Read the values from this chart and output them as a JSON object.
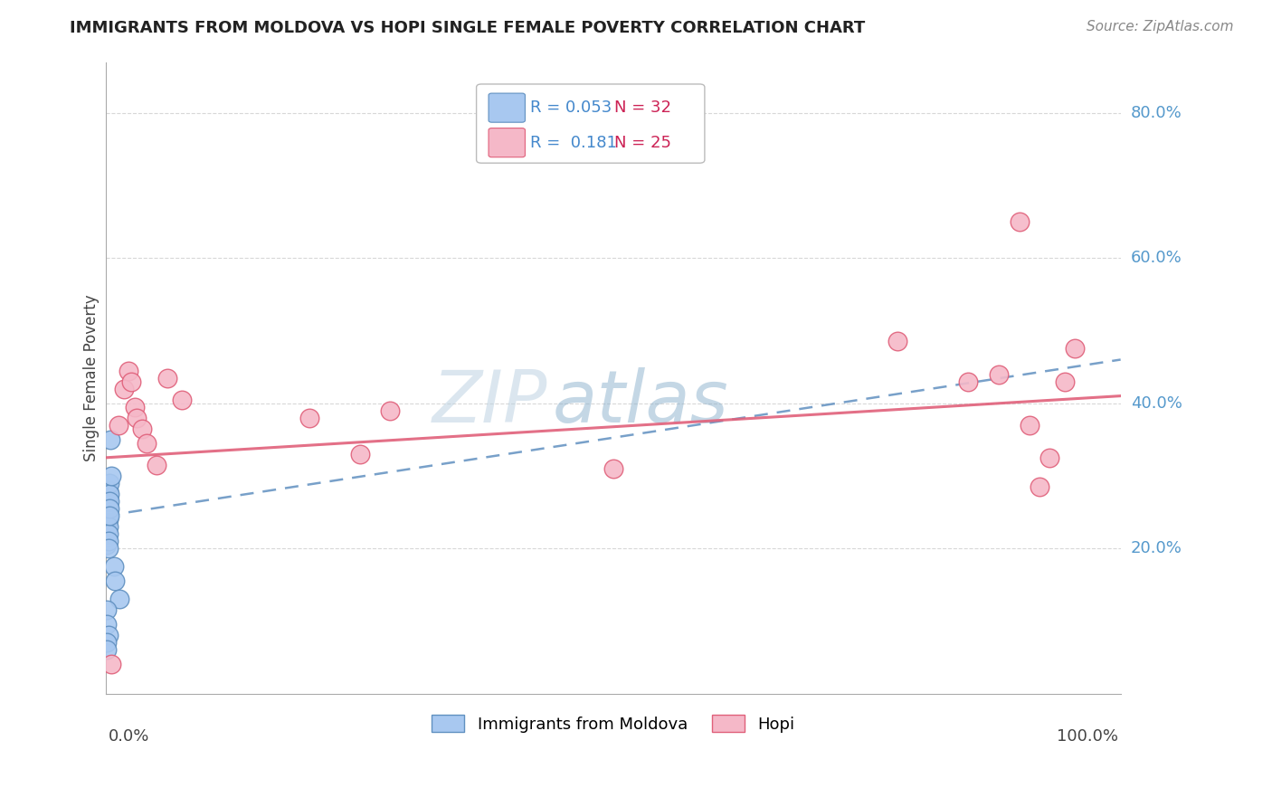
{
  "title": "IMMIGRANTS FROM MOLDOVA VS HOPI SINGLE FEMALE POVERTY CORRELATION CHART",
  "source": "Source: ZipAtlas.com",
  "ylabel": "Single Female Poverty",
  "legend_label1": "Immigrants from Moldova",
  "legend_label2": "Hopi",
  "moldova_x": [
    0.001,
    0.001,
    0.001,
    0.001,
    0.001,
    0.001,
    0.001,
    0.001,
    0.002,
    0.002,
    0.002,
    0.002,
    0.002,
    0.002,
    0.002,
    0.002,
    0.002,
    0.003,
    0.003,
    0.003,
    0.003,
    0.003,
    0.004,
    0.005,
    0.008,
    0.009,
    0.013,
    0.001,
    0.001,
    0.002,
    0.001,
    0.001
  ],
  "moldova_y": [
    0.275,
    0.265,
    0.255,
    0.245,
    0.235,
    0.225,
    0.215,
    0.205,
    0.28,
    0.27,
    0.26,
    0.25,
    0.24,
    0.23,
    0.22,
    0.21,
    0.2,
    0.29,
    0.275,
    0.265,
    0.255,
    0.245,
    0.35,
    0.3,
    0.175,
    0.155,
    0.13,
    0.115,
    0.095,
    0.08,
    0.07,
    0.06
  ],
  "hopi_x": [
    0.005,
    0.012,
    0.018,
    0.022,
    0.025,
    0.028,
    0.03,
    0.035,
    0.04,
    0.05,
    0.06,
    0.075,
    0.2,
    0.25,
    0.28,
    0.5,
    0.78,
    0.85,
    0.88,
    0.9,
    0.91,
    0.92,
    0.93,
    0.945,
    0.955
  ],
  "hopi_y": [
    0.04,
    0.37,
    0.42,
    0.445,
    0.43,
    0.395,
    0.38,
    0.365,
    0.345,
    0.315,
    0.435,
    0.405,
    0.38,
    0.33,
    0.39,
    0.31,
    0.485,
    0.43,
    0.44,
    0.65,
    0.37,
    0.285,
    0.325,
    0.43,
    0.475
  ],
  "color_moldova": "#a8c8f0",
  "color_moldova_edge": "#6090c0",
  "color_hopi": "#f5b8c8",
  "color_hopi_edge": "#e0607a",
  "background_color": "#ffffff",
  "grid_color": "#d8d8d8",
  "mol_line_x": [
    0.0,
    1.0
  ],
  "mol_line_y": [
    0.245,
    0.46
  ],
  "hopi_line_x": [
    0.0,
    1.0
  ],
  "hopi_line_y": [
    0.325,
    0.41
  ],
  "xlim": [
    0.0,
    1.0
  ],
  "ylim": [
    0.0,
    0.87
  ],
  "ytick_vals": [
    0.2,
    0.4,
    0.6,
    0.8
  ],
  "ytick_labels": [
    "20.0%",
    "40.0%",
    "60.0%",
    "80.0%"
  ]
}
